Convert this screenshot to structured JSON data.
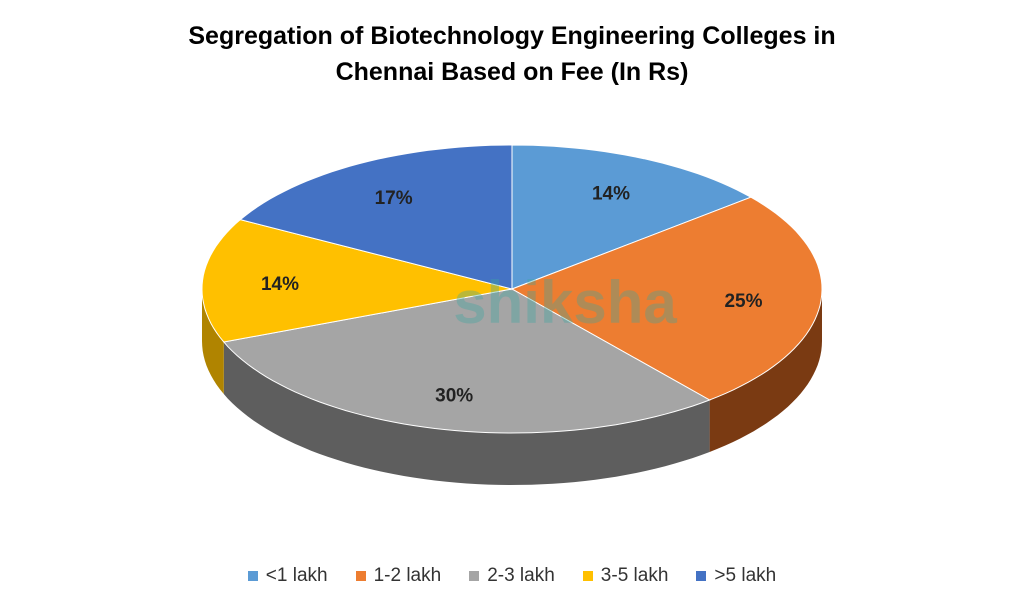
{
  "chart_data": {
    "type": "pie",
    "style": "3d",
    "title_line1": "Segregation of Biotechnology Engineering Colleges in",
    "title_line2": "Chennai Based on Fee (In Rs)",
    "categories": [
      "<1 lakh",
      "1-2 lakh",
      "2-3 lakh",
      "3-5 lakh",
      ">5 lakh"
    ],
    "values": [
      14,
      25,
      30,
      14,
      17
    ],
    "labels": [
      "14%",
      "25%",
      "30%",
      "14%",
      "17%"
    ],
    "colors": [
      "#5B9BD5",
      "#ED7D31",
      "#A5A5A5",
      "#FFC000",
      "#4472C4"
    ],
    "side_colors": [
      "#3a6a96",
      "#7a3a12",
      "#5e5e5e",
      "#b08400",
      "#2c4f8a"
    ],
    "legend_position": "bottom",
    "watermark": "shiksha"
  }
}
